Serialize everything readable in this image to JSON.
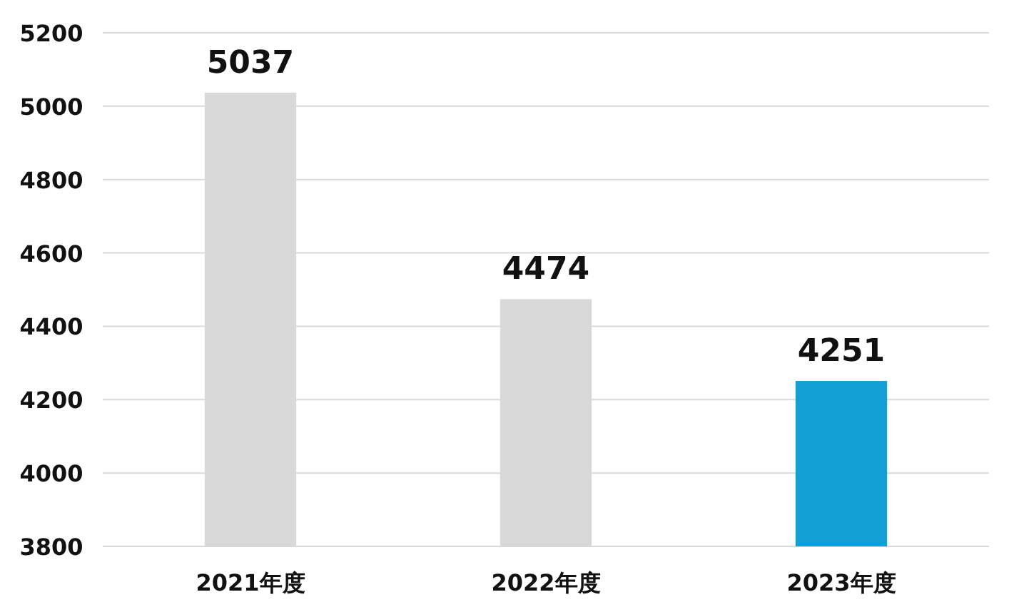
{
  "chart_data": {
    "type": "bar",
    "categories": [
      "2021年度",
      "2022年度",
      "2023年度"
    ],
    "values": [
      5037,
      4474,
      4251
    ],
    "colors": [
      "#d9d9d9",
      "#d9d9d9",
      "#129fd6"
    ],
    "ylim": [
      3800,
      5200
    ],
    "yticks": [
      3800,
      4000,
      4200,
      4400,
      4600,
      4800,
      5000,
      5200
    ],
    "grid": "y",
    "data_labels": true
  }
}
